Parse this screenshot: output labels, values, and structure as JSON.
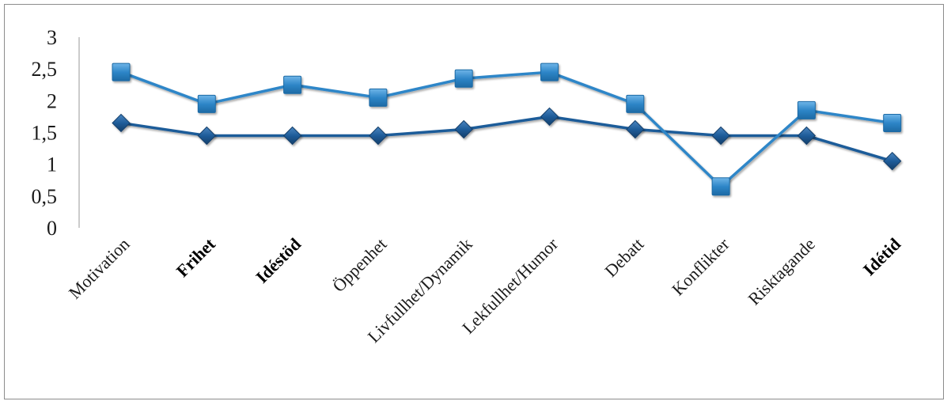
{
  "chart_data": {
    "type": "line",
    "title": "",
    "xlabel": "",
    "ylabel": "",
    "ylim": [
      0,
      3
    ],
    "y_ticks": [
      "0",
      "0,5",
      "1",
      "1,5",
      "2",
      "2,5",
      "3"
    ],
    "y_tick_values": [
      0,
      0.5,
      1,
      1.5,
      2,
      2.5,
      3
    ],
    "categories": [
      "Motivation",
      "Frihet",
      "Idéstöd",
      "Öppenhet",
      "Livfullhet/Dynamik",
      "Lekfullhet/Humor",
      "Debatt",
      "Konflikter",
      "Risktagande",
      "Idétid"
    ],
    "bold_categories": [
      "Frihet",
      "Idéstöd",
      "Idétid"
    ],
    "grid": false,
    "legend": "none",
    "series": [
      {
        "marker": "diamond",
        "color": "#1f5c99",
        "values": [
          1.65,
          1.45,
          1.45,
          1.45,
          1.55,
          1.75,
          1.55,
          1.45,
          1.45,
          1.05
        ]
      },
      {
        "marker": "square",
        "color": "#2e86c8",
        "values": [
          2.45,
          1.95,
          2.25,
          2.05,
          2.35,
          2.45,
          1.95,
          0.65,
          1.85,
          1.65
        ]
      }
    ]
  }
}
